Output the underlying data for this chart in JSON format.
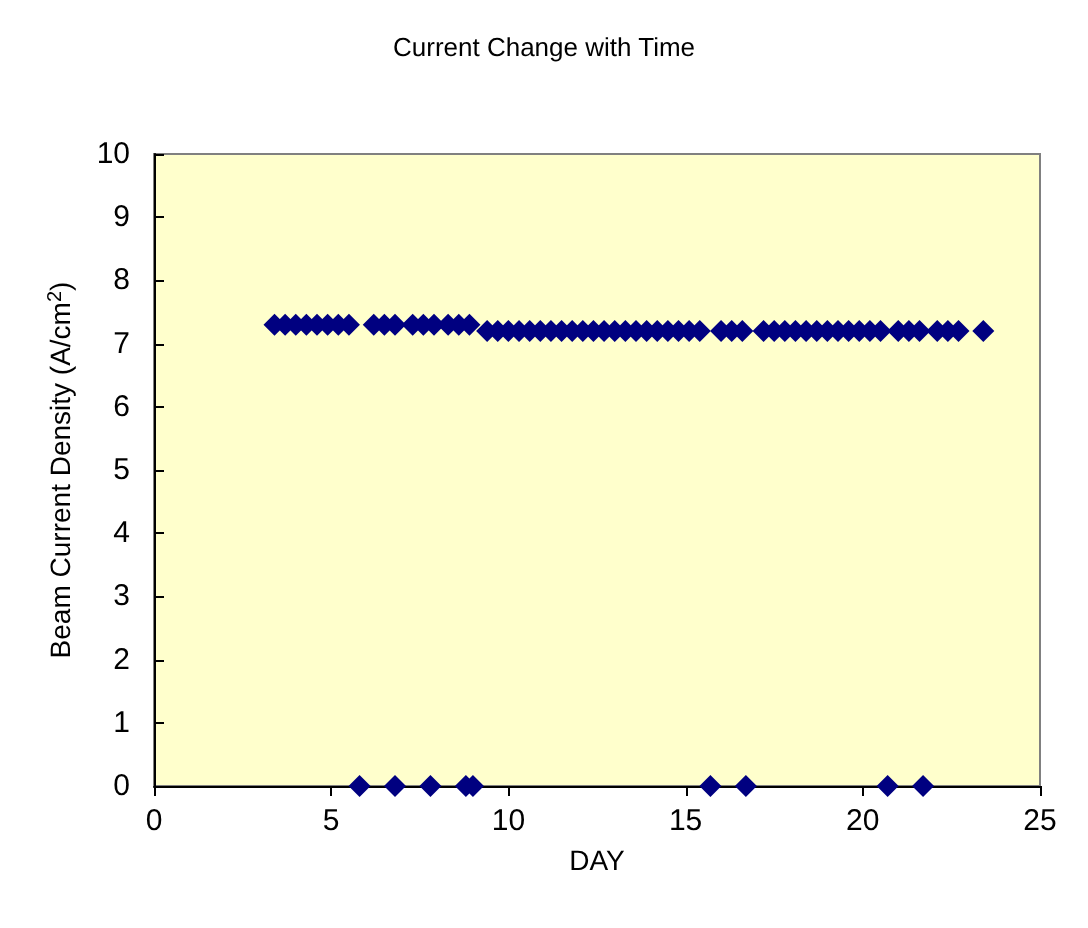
{
  "chart_data": {
    "type": "scatter",
    "title": "Current Change with Time",
    "xlabel": "DAY",
    "ylabel": "Beam Current Density (A/cm$^{2}$)",
    "x": [
      3.4,
      3.7,
      4.0,
      4.3,
      4.6,
      4.9,
      5.2,
      5.5,
      6.2,
      6.5,
      6.8,
      7.3,
      7.6,
      7.9,
      8.3,
      8.6,
      8.9,
      9.4,
      9.7,
      10.0,
      10.3,
      10.6,
      10.9,
      11.2,
      11.5,
      11.8,
      12.1,
      12.4,
      12.7,
      13.0,
      13.3,
      13.6,
      13.9,
      14.2,
      14.5,
      14.8,
      15.1,
      15.4,
      16.0,
      16.3,
      16.6,
      17.2,
      17.5,
      17.8,
      18.1,
      18.4,
      18.7,
      19.0,
      19.3,
      19.6,
      19.9,
      20.2,
      20.5,
      21.0,
      21.3,
      21.6,
      22.1,
      22.4,
      22.7,
      23.4,
      5.8,
      6.8,
      7.8,
      8.8,
      9.0,
      15.7,
      16.7,
      20.7,
      21.7
    ],
    "values": [
      7.3,
      7.3,
      7.3,
      7.3,
      7.3,
      7.3,
      7.3,
      7.3,
      7.3,
      7.3,
      7.3,
      7.3,
      7.3,
      7.3,
      7.3,
      7.3,
      7.3,
      7.2,
      7.2,
      7.2,
      7.2,
      7.2,
      7.2,
      7.2,
      7.2,
      7.2,
      7.2,
      7.2,
      7.2,
      7.2,
      7.2,
      7.2,
      7.2,
      7.2,
      7.2,
      7.2,
      7.2,
      7.2,
      7.2,
      7.2,
      7.2,
      7.2,
      7.2,
      7.2,
      7.2,
      7.2,
      7.2,
      7.2,
      7.2,
      7.2,
      7.2,
      7.2,
      7.2,
      7.2,
      7.2,
      7.2,
      7.2,
      7.2,
      7.2,
      7.2,
      0,
      0,
      0,
      0,
      0,
      0,
      0,
      0,
      0
    ],
    "color": "#000080",
    "marker": "diamond",
    "xlim": [
      0,
      25
    ],
    "xticks": [
      0,
      5,
      10,
      15,
      20,
      25
    ],
    "ylim": [
      0,
      10
    ],
    "yticks": [
      0,
      1,
      2,
      3,
      4,
      5,
      6,
      7,
      8,
      9,
      10
    ],
    "grid": false
  }
}
